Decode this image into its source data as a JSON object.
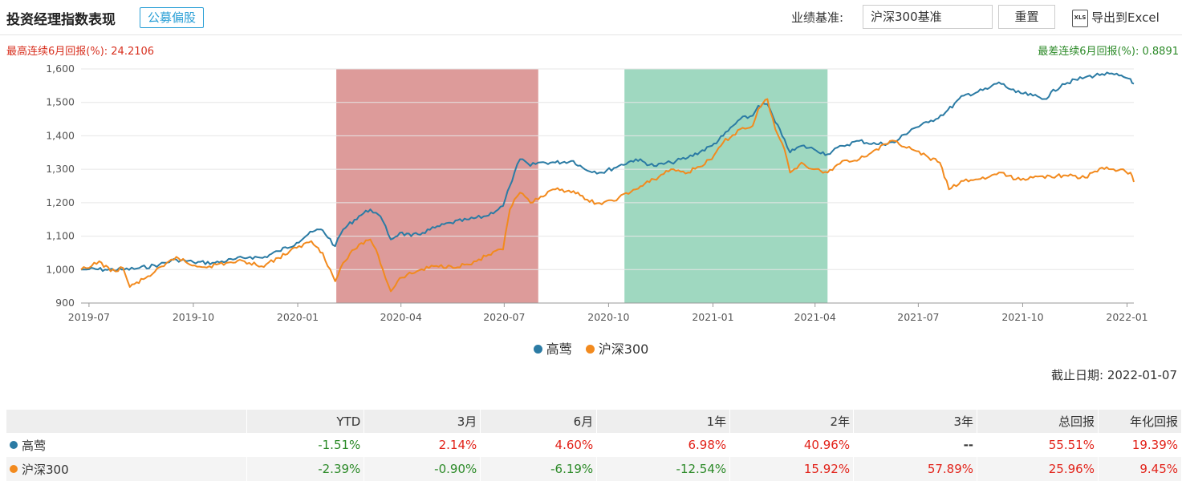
{
  "header": {
    "title": "投资经理指数表现",
    "tag": "公募偏股",
    "benchmark_label": "业绩基准:",
    "benchmark_value": "沪深300基准",
    "reset_label": "重置",
    "excel_icon_text": "XLS",
    "excel_label": "导出到Excel"
  },
  "stats": {
    "best": "最高连续6月回报(%):  24.2106",
    "worst": "最差连续6月回报(%):  0.8891"
  },
  "as_of": "截止日期:  2022-01-07",
  "colors": {
    "manager": "#2b7ba4",
    "benchmark": "#f28a1e",
    "best_band": "#dd9b9a",
    "worst_band": "#9fd8c0"
  },
  "chart_data": {
    "type": "line",
    "ylim": [
      900,
      1600
    ],
    "yticks": [
      900,
      1000,
      1100,
      1200,
      1300,
      1400,
      1500,
      1600
    ],
    "xlim": [
      "2019-06-24",
      "2022-01-07"
    ],
    "xticks": [
      "2019-07",
      "2019-10",
      "2020-01",
      "2020-04",
      "2020-07",
      "2020-10",
      "2021-01",
      "2021-04",
      "2021-07",
      "2021-10",
      "2022-01"
    ],
    "grid": "horizontal",
    "legend_position": "bottom",
    "bands": [
      {
        "start": "2020-02-04",
        "end": "2020-07-31",
        "kind": "best"
      },
      {
        "start": "2020-10-15",
        "end": "2021-04-12",
        "kind": "worst"
      }
    ],
    "series": [
      {
        "name": "高莺",
        "points": [
          [
            "2019-06-24",
            1000
          ],
          [
            "2019-07-01",
            1001
          ],
          [
            "2019-07-15",
            1000
          ],
          [
            "2019-08-01",
            1000
          ],
          [
            "2019-08-12",
            1003
          ],
          [
            "2019-09-01",
            1015
          ],
          [
            "2019-09-16",
            1030
          ],
          [
            "2019-10-01",
            1022
          ],
          [
            "2019-10-20",
            1020
          ],
          [
            "2019-11-05",
            1030
          ],
          [
            "2019-11-20",
            1038
          ],
          [
            "2019-12-01",
            1035
          ],
          [
            "2019-12-15",
            1055
          ],
          [
            "2019-12-31",
            1080
          ],
          [
            "2020-01-10",
            1105
          ],
          [
            "2020-01-20",
            1120
          ],
          [
            "2020-01-23",
            1118
          ],
          [
            "2020-02-03",
            1070
          ],
          [
            "2020-02-10",
            1120
          ],
          [
            "2020-02-24",
            1160
          ],
          [
            "2020-03-05",
            1180
          ],
          [
            "2020-03-10",
            1170
          ],
          [
            "2020-03-16",
            1145
          ],
          [
            "2020-03-23",
            1090
          ],
          [
            "2020-03-31",
            1110
          ],
          [
            "2020-04-10",
            1100
          ],
          [
            "2020-04-20",
            1110
          ],
          [
            "2020-05-01",
            1125
          ],
          [
            "2020-05-15",
            1140
          ],
          [
            "2020-05-31",
            1150
          ],
          [
            "2020-06-15",
            1160
          ],
          [
            "2020-06-30",
            1190
          ],
          [
            "2020-07-06",
            1250
          ],
          [
            "2020-07-10",
            1290
          ],
          [
            "2020-07-15",
            1330
          ],
          [
            "2020-07-24",
            1310
          ],
          [
            "2020-07-31",
            1320
          ],
          [
            "2020-08-15",
            1320
          ],
          [
            "2020-08-31",
            1325
          ],
          [
            "2020-09-10",
            1300
          ],
          [
            "2020-09-25",
            1290
          ],
          [
            "2020-10-10",
            1310
          ],
          [
            "2020-10-25",
            1330
          ],
          [
            "2020-11-10",
            1310
          ],
          [
            "2020-11-25",
            1320
          ],
          [
            "2020-12-10",
            1335
          ],
          [
            "2020-12-31",
            1370
          ],
          [
            "2021-01-10",
            1400
          ],
          [
            "2021-01-25",
            1450
          ],
          [
            "2021-02-05",
            1460
          ],
          [
            "2021-02-10",
            1490
          ],
          [
            "2021-02-18",
            1495
          ],
          [
            "2021-02-25",
            1440
          ],
          [
            "2021-03-05",
            1390
          ],
          [
            "2021-03-10",
            1350
          ],
          [
            "2021-03-20",
            1370
          ],
          [
            "2021-03-31",
            1360
          ],
          [
            "2021-04-12",
            1345
          ],
          [
            "2021-04-25",
            1370
          ],
          [
            "2021-05-10",
            1385
          ],
          [
            "2021-05-25",
            1375
          ],
          [
            "2021-06-10",
            1380
          ],
          [
            "2021-06-25",
            1420
          ],
          [
            "2021-07-10",
            1440
          ],
          [
            "2021-07-25",
            1470
          ],
          [
            "2021-08-10",
            1520
          ],
          [
            "2021-08-31",
            1540
          ],
          [
            "2021-09-10",
            1560
          ],
          [
            "2021-09-25",
            1530
          ],
          [
            "2021-10-10",
            1520
          ],
          [
            "2021-10-20",
            1510
          ],
          [
            "2021-11-05",
            1555
          ],
          [
            "2021-11-25",
            1575
          ],
          [
            "2021-12-10",
            1585
          ],
          [
            "2021-12-25",
            1580
          ],
          [
            "2022-01-04",
            1570
          ],
          [
            "2022-01-07",
            1556
          ]
        ]
      },
      {
        "name": "沪深300",
        "points": [
          [
            "2019-06-24",
            1000
          ],
          [
            "2019-07-01",
            1005
          ],
          [
            "2019-07-10",
            1025
          ],
          [
            "2019-07-20",
            995
          ],
          [
            "2019-07-31",
            1005
          ],
          [
            "2019-08-06",
            948
          ],
          [
            "2019-08-20",
            975
          ],
          [
            "2019-09-05",
            1010
          ],
          [
            "2019-09-16",
            1038
          ],
          [
            "2019-09-30",
            1012
          ],
          [
            "2019-10-15",
            1010
          ],
          [
            "2019-10-30",
            1020
          ],
          [
            "2019-11-15",
            1025
          ],
          [
            "2019-11-30",
            1010
          ],
          [
            "2019-12-15",
            1035
          ],
          [
            "2019-12-31",
            1065
          ],
          [
            "2020-01-13",
            1085
          ],
          [
            "2020-01-23",
            1050
          ],
          [
            "2020-02-03",
            965
          ],
          [
            "2020-02-10",
            1020
          ],
          [
            "2020-02-20",
            1060
          ],
          [
            "2020-02-24",
            1075
          ],
          [
            "2020-03-05",
            1090
          ],
          [
            "2020-03-10",
            1060
          ],
          [
            "2020-03-16",
            1000
          ],
          [
            "2020-03-23",
            935
          ],
          [
            "2020-03-31",
            975
          ],
          [
            "2020-04-15",
            995
          ],
          [
            "2020-04-30",
            1010
          ],
          [
            "2020-05-15",
            1010
          ],
          [
            "2020-05-31",
            1015
          ],
          [
            "2020-06-15",
            1040
          ],
          [
            "2020-06-30",
            1060
          ],
          [
            "2020-07-06",
            1180
          ],
          [
            "2020-07-10",
            1210
          ],
          [
            "2020-07-15",
            1230
          ],
          [
            "2020-07-24",
            1200
          ],
          [
            "2020-07-31",
            1210
          ],
          [
            "2020-08-15",
            1240
          ],
          [
            "2020-08-31",
            1235
          ],
          [
            "2020-09-10",
            1210
          ],
          [
            "2020-09-25",
            1195
          ],
          [
            "2020-10-10",
            1215
          ],
          [
            "2020-10-25",
            1240
          ],
          [
            "2020-11-10",
            1270
          ],
          [
            "2020-11-25",
            1300
          ],
          [
            "2020-12-10",
            1290
          ],
          [
            "2020-12-31",
            1330
          ],
          [
            "2021-01-10",
            1380
          ],
          [
            "2021-01-25",
            1420
          ],
          [
            "2021-02-05",
            1430
          ],
          [
            "2021-02-10",
            1480
          ],
          [
            "2021-02-18",
            1510
          ],
          [
            "2021-02-25",
            1420
          ],
          [
            "2021-03-05",
            1360
          ],
          [
            "2021-03-10",
            1290
          ],
          [
            "2021-03-20",
            1320
          ],
          [
            "2021-03-31",
            1300
          ],
          [
            "2021-04-12",
            1290
          ],
          [
            "2021-04-25",
            1325
          ],
          [
            "2021-05-10",
            1330
          ],
          [
            "2021-05-25",
            1360
          ],
          [
            "2021-06-10",
            1385
          ],
          [
            "2021-06-25",
            1360
          ],
          [
            "2021-07-10",
            1335
          ],
          [
            "2021-07-20",
            1320
          ],
          [
            "2021-07-28",
            1240
          ],
          [
            "2021-08-10",
            1265
          ],
          [
            "2021-08-31",
            1275
          ],
          [
            "2021-09-10",
            1290
          ],
          [
            "2021-09-25",
            1270
          ],
          [
            "2021-10-10",
            1275
          ],
          [
            "2021-10-25",
            1280
          ],
          [
            "2021-11-10",
            1280
          ],
          [
            "2021-11-25",
            1275
          ],
          [
            "2021-12-10",
            1305
          ],
          [
            "2021-12-20",
            1300
          ],
          [
            "2022-01-04",
            1290
          ],
          [
            "2022-01-07",
            1262
          ]
        ]
      }
    ]
  },
  "table": {
    "headers": [
      "",
      "YTD",
      "3月",
      "6月",
      "1年",
      "2年",
      "3年",
      "总回报",
      "年化回报"
    ],
    "rows": [
      {
        "name": "高莺",
        "values": [
          "-1.51%",
          "2.14%",
          "4.60%",
          "6.98%",
          "40.96%",
          "--",
          "55.51%",
          "19.39%"
        ]
      },
      {
        "name": "沪深300",
        "values": [
          "-2.39%",
          "-0.90%",
          "-6.19%",
          "-12.54%",
          "15.92%",
          "57.89%",
          "25.96%",
          "9.45%"
        ]
      }
    ]
  }
}
